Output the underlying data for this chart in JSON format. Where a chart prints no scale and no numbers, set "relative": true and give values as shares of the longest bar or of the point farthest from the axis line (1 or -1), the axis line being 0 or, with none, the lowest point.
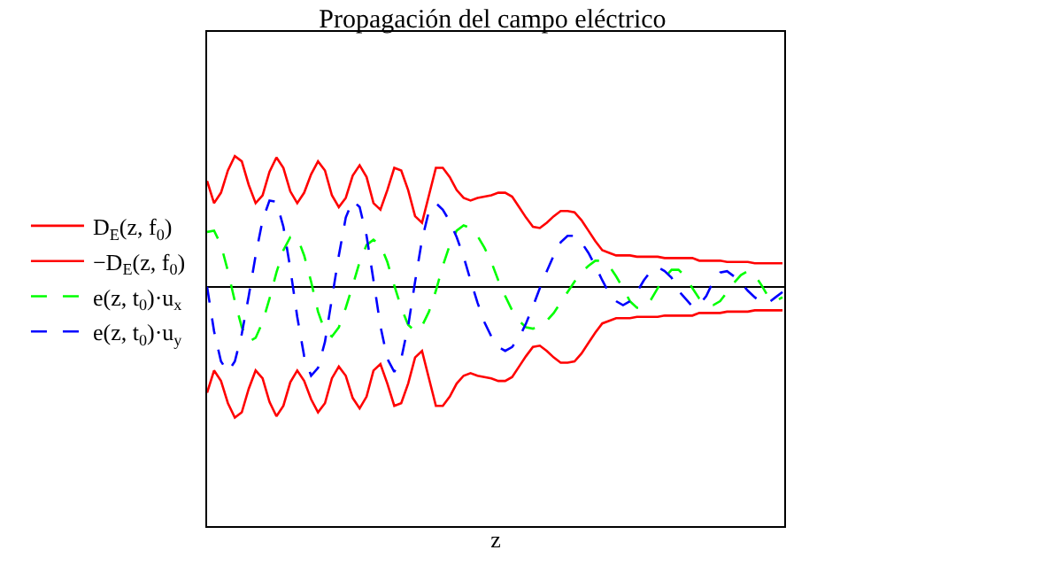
{
  "chart_data": {
    "type": "line",
    "title": "Propagación del campo eléctrico",
    "xlabel": "z",
    "relative": true,
    "legend": "left",
    "marker": "none",
    "categories": [
      null,
      null,
      null,
      null,
      null,
      null,
      null,
      null,
      null,
      null,
      null,
      null,
      null,
      null,
      null,
      null,
      null,
      null,
      null,
      null,
      null,
      null,
      null,
      null,
      null,
      null,
      null,
      null,
      null,
      null,
      null,
      null,
      null,
      null,
      null,
      null,
      null,
      null,
      null,
      null,
      null,
      null,
      null,
      null,
      null,
      null,
      null,
      null,
      null,
      null,
      null,
      null,
      null,
      null,
      null,
      null,
      null,
      null,
      null,
      null,
      null,
      null,
      null,
      null,
      null,
      null,
      null,
      null,
      null,
      null,
      null,
      null,
      null,
      null,
      null,
      null,
      null,
      null,
      null,
      null,
      null,
      null,
      null,
      null
    ],
    "series": [
      {
        "name": "D$_{E}$(z, f$_{0}$)",
        "color": "#ff0000",
        "line_style": "solid",
        "values": [
          0.81,
          0.64,
          0.72,
          0.89,
          1,
          0.96,
          0.78,
          0.64,
          0.7,
          0.88,
          0.99,
          0.91,
          0.73,
          0.64,
          0.72,
          0.86,
          0.96,
          0.89,
          0.7,
          0.61,
          0.68,
          0.85,
          0.93,
          0.84,
          0.64,
          0.59,
          0.74,
          0.91,
          0.89,
          0.74,
          0.54,
          0.49,
          0.7,
          0.91,
          0.91,
          0.84,
          0.74,
          0.68,
          0.66,
          0.68,
          0.69,
          0.7,
          0.72,
          0.72,
          0.69,
          0.61,
          0.53,
          0.46,
          0.45,
          0.49,
          0.54,
          0.58,
          0.58,
          0.57,
          0.51,
          0.43,
          0.35,
          0.28,
          0.26,
          0.24,
          0.24,
          0.24,
          0.23,
          0.23,
          0.23,
          0.23,
          0.22,
          0.22,
          0.22,
          0.22,
          0.22,
          0.2,
          0.2,
          0.2,
          0.2,
          0.19,
          0.19,
          0.19,
          0.19,
          0.18,
          0.18,
          0.18,
          0.18,
          0.18
        ]
      },
      {
        "name": "−D$_{E}$(z, f$_{0}$)",
        "color": "#ff0000",
        "line_style": "solid",
        "values": [
          -0.81,
          -0.64,
          -0.72,
          -0.89,
          -1,
          -0.96,
          -0.78,
          -0.64,
          -0.7,
          -0.88,
          -0.99,
          -0.91,
          -0.73,
          -0.64,
          -0.72,
          -0.86,
          -0.96,
          -0.89,
          -0.7,
          -0.61,
          -0.68,
          -0.85,
          -0.93,
          -0.84,
          -0.64,
          -0.59,
          -0.74,
          -0.91,
          -0.89,
          -0.74,
          -0.54,
          -0.49,
          -0.7,
          -0.91,
          -0.91,
          -0.84,
          -0.74,
          -0.68,
          -0.66,
          -0.68,
          -0.69,
          -0.7,
          -0.72,
          -0.72,
          -0.69,
          -0.61,
          -0.53,
          -0.46,
          -0.45,
          -0.49,
          -0.54,
          -0.58,
          -0.58,
          -0.57,
          -0.51,
          -0.43,
          -0.35,
          -0.28,
          -0.26,
          -0.24,
          -0.24,
          -0.24,
          -0.23,
          -0.23,
          -0.23,
          -0.23,
          -0.22,
          -0.22,
          -0.22,
          -0.22,
          -0.22,
          -0.2,
          -0.2,
          -0.2,
          -0.2,
          -0.19,
          -0.19,
          -0.19,
          -0.19,
          -0.18,
          -0.18,
          -0.18,
          -0.18,
          -0.18
        ]
      },
      {
        "name": "e(z, t$_{0}$)·u$_{x}$",
        "color": "#00ff00",
        "line_style": "dashed",
        "values": [
          0.42,
          0.43,
          0.32,
          0.12,
          -0.11,
          -0.31,
          -0.42,
          -0.39,
          -0.27,
          -0.09,
          0.11,
          0.28,
          0.38,
          0.38,
          0.24,
          0.04,
          -0.19,
          -0.34,
          -0.38,
          -0.31,
          -0.16,
          0.01,
          0.19,
          0.32,
          0.36,
          0.32,
          0.19,
          0.01,
          -0.16,
          -0.29,
          -0.34,
          -0.3,
          -0.19,
          -0.03,
          0.16,
          0.32,
          0.43,
          0.47,
          0.45,
          0.39,
          0.3,
          0.19,
          0.05,
          -0.07,
          -0.18,
          -0.26,
          -0.31,
          -0.32,
          -0.3,
          -0.26,
          -0.2,
          -0.12,
          -0.04,
          0.04,
          0.11,
          0.16,
          0.2,
          0.2,
          0.16,
          0.08,
          -0.01,
          -0.11,
          -0.16,
          -0.16,
          -0.1,
          -0.01,
          0.07,
          0.13,
          0.13,
          0.08,
          -0.01,
          -0.09,
          -0.14,
          -0.14,
          -0.11,
          -0.04,
          0.03,
          0.09,
          0.12,
          0.09,
          0.01,
          -0.08,
          -0.11,
          -0.08
        ]
      },
      {
        "name": "e(z, t$_{0}$)·u$_{y}$",
        "color": "#0000ff",
        "line_style": "dashed",
        "values": [
          0,
          -0.34,
          -0.57,
          -0.65,
          -0.57,
          -0.36,
          -0.07,
          0.24,
          0.51,
          0.66,
          0.65,
          0.46,
          0.14,
          -0.23,
          -0.53,
          -0.68,
          -0.62,
          -0.42,
          -0.09,
          0.24,
          0.53,
          0.66,
          0.61,
          0.39,
          0.05,
          -0.3,
          -0.55,
          -0.65,
          -0.55,
          -0.3,
          0.04,
          0.36,
          0.58,
          0.64,
          0.59,
          0.5,
          0.38,
          0.23,
          0.05,
          -0.12,
          -0.27,
          -0.38,
          -0.46,
          -0.49,
          -0.46,
          -0.39,
          -0.28,
          -0.15,
          -0.01,
          0.12,
          0.24,
          0.34,
          0.39,
          0.39,
          0.34,
          0.26,
          0.16,
          0.05,
          -0.05,
          -0.11,
          -0.14,
          -0.11,
          -0.04,
          0.05,
          0.12,
          0.15,
          0.12,
          0.07,
          -0.03,
          -0.09,
          -0.15,
          -0.14,
          -0.07,
          0.04,
          0.11,
          0.12,
          0.08,
          0.03,
          -0.03,
          -0.08,
          -0.12,
          -0.12,
          -0.08,
          -0.04
        ]
      }
    ]
  }
}
